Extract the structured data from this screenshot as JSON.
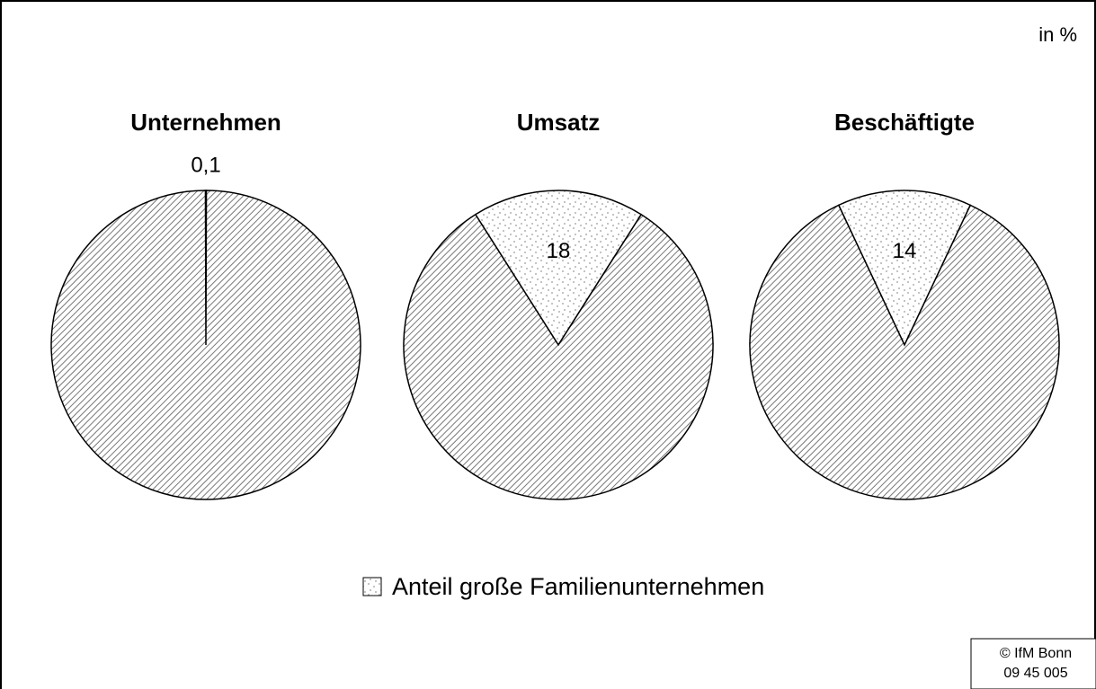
{
  "unit_note": "in %",
  "legend": "Anteil große Familienunternehmen",
  "footer": [
    "© IfM Bonn",
    "09 45 005"
  ],
  "chart_data": [
    {
      "type": "pie",
      "title": "Unternehmen",
      "values": [
        0.1,
        99.9
      ],
      "value_labels": [
        "0,1",
        null
      ],
      "patterns": [
        "dots",
        "hatch"
      ]
    },
    {
      "type": "pie",
      "title": "Umsatz",
      "values": [
        18,
        82
      ],
      "value_labels": [
        "18",
        null
      ],
      "patterns": [
        "dots",
        "hatch"
      ]
    },
    {
      "type": "pie",
      "title": "Beschäftigte",
      "values": [
        14,
        86
      ],
      "value_labels": [
        "14",
        null
      ],
      "patterns": [
        "dots",
        "hatch"
      ]
    }
  ]
}
